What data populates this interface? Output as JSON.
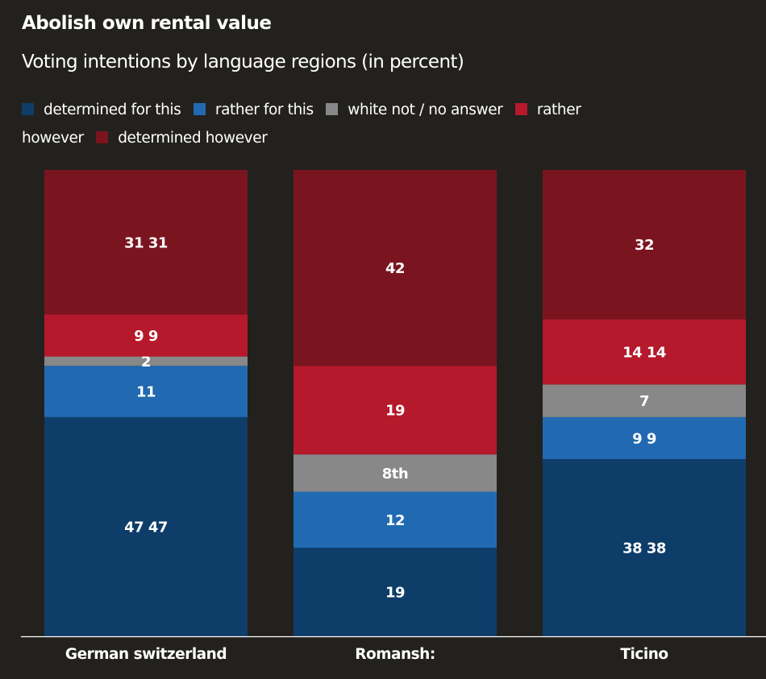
{
  "header": {
    "title": "Abolish own rental value",
    "subtitle": "Voting intentions by language regions (in percent)"
  },
  "legend": [
    {
      "label": "determined for this",
      "color": "#0e3d69"
    },
    {
      "label": "rather for this",
      "color": "#216ab1"
    },
    {
      "label": "white not / no answer",
      "color": "#888888"
    },
    {
      "label": "rather however",
      "color": "#b5192b"
    },
    {
      "label": "determined however",
      "color": "#7a151f"
    }
  ],
  "chart_data": {
    "type": "bar",
    "stacked": true,
    "orientation": "vertical",
    "title": "Abolish own rental value",
    "subtitle": "Voting intentions by language regions (in percent)",
    "xlabel": "",
    "ylabel": "",
    "ylim": [
      0,
      100
    ],
    "grid": false,
    "legend_position": "top-left",
    "categories": [
      "German switzerland",
      "Romansh:",
      "Ticino"
    ],
    "series": [
      {
        "name": "determined for this",
        "color": "#0e3d69",
        "values": [
          47,
          19,
          38
        ],
        "labels": [
          "47 47",
          "19",
          "38 38"
        ]
      },
      {
        "name": "rather for this",
        "color": "#216ab1",
        "values": [
          11,
          12,
          9
        ],
        "labels": [
          "11",
          "12",
          "9 9"
        ]
      },
      {
        "name": "white not / no answer",
        "color": "#888888",
        "values": [
          2,
          8,
          7
        ],
        "labels": [
          "2",
          "8th",
          "7"
        ]
      },
      {
        "name": "rather however",
        "color": "#b5192b",
        "values": [
          9,
          19,
          14
        ],
        "labels": [
          "9 9",
          "19",
          "14 14"
        ]
      },
      {
        "name": "determined however",
        "color": "#7a151f",
        "values": [
          31,
          42,
          32
        ],
        "labels": [
          "31 31",
          "42",
          "32"
        ]
      }
    ]
  }
}
